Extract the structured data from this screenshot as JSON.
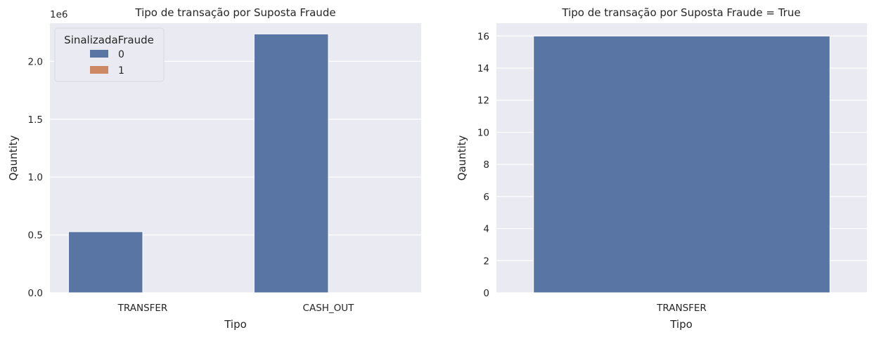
{
  "chart_data": [
    {
      "type": "bar",
      "title": "Tipo de transação por Suposta Fraude",
      "xlabel": "Tipo",
      "ylabel": "Qauntity",
      "offset_label": "1e6",
      "categories": [
        "TRANSFER",
        "CASH_OUT"
      ],
      "ylim": [
        0,
        2.33
      ],
      "yticks": [
        0.0,
        0.5,
        1.0,
        1.5,
        2.0
      ],
      "ytick_labels": [
        "0.0",
        "0.5",
        "1.0",
        "1.5",
        "2.0"
      ],
      "grid": true,
      "legend": {
        "title": "SinalizadaFraude",
        "placement": "top-left",
        "entries": [
          "0",
          "1"
        ]
      },
      "series": [
        {
          "name": "0",
          "color": "#5975a4",
          "values": [
            0.528,
            2.237
          ]
        },
        {
          "name": "1",
          "color": "#cc8963",
          "values": [
            0.0,
            0.0
          ]
        }
      ]
    },
    {
      "type": "bar",
      "title": "Tipo de transação por Suposta Fraude = True",
      "xlabel": "Tipo",
      "ylabel": "Qauntity",
      "categories": [
        "TRANSFER"
      ],
      "ylim": [
        0,
        16.8
      ],
      "yticks": [
        0,
        2,
        4,
        6,
        8,
        10,
        12,
        14,
        16
      ],
      "ytick_labels": [
        "0",
        "2",
        "4",
        "6",
        "8",
        "10",
        "12",
        "14",
        "16"
      ],
      "grid": true,
      "series": [
        {
          "color": "#5975a4",
          "values": [
            16
          ]
        }
      ]
    }
  ],
  "colors": {
    "axes_bg": "#eaeaf2",
    "grid": "#ffffff",
    "text": "#262626"
  }
}
